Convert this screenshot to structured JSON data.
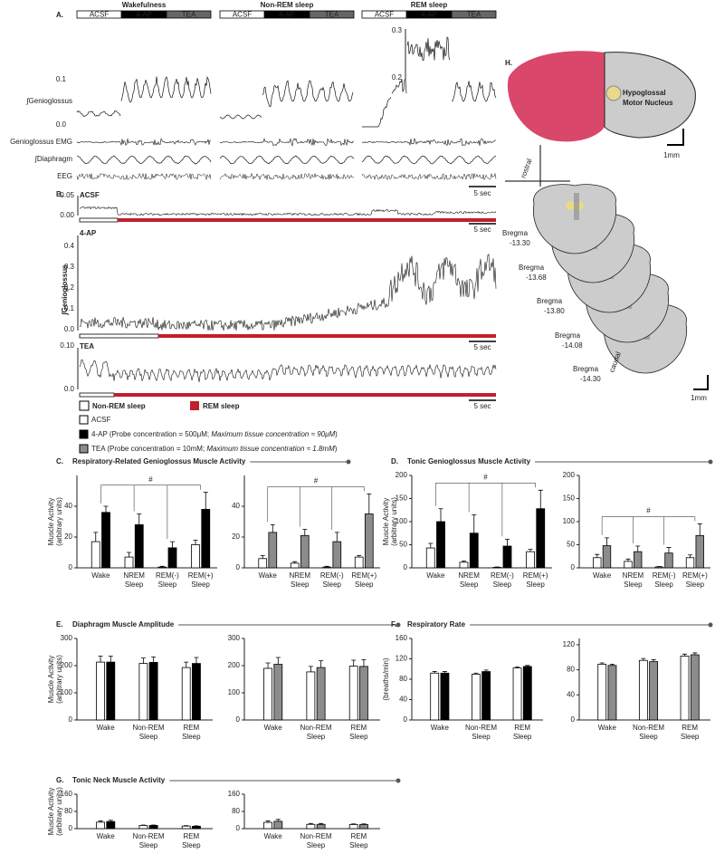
{
  "panel_a": {
    "label": "A.",
    "states": [
      {
        "name": "Wakefulness",
        "phases": [
          "ACSF",
          "4-AP",
          "TEA"
        ]
      },
      {
        "name": "Non-REM sleep",
        "phases": [
          "ACSF",
          "4-AP",
          "TEA"
        ]
      },
      {
        "name": "REM sleep",
        "phases": [
          "ACSF",
          "4-AP",
          "TEA"
        ]
      }
    ],
    "yticks": [
      "0.1",
      "0.0"
    ],
    "inset_yticks": [
      "0.3",
      "0.2"
    ],
    "traces": [
      "∫Genioglossus",
      "Genioglossus EMG",
      "∫Diaphragm",
      "EEG"
    ],
    "scale": "5 sec"
  },
  "panel_b": {
    "label": "B.",
    "ylabel": "∫Genioglossus",
    "rows": [
      {
        "name": "ACSF",
        "yticks": [
          "0.05",
          "0.00"
        ],
        "scale": "5 sec"
      },
      {
        "name": "4-AP",
        "yticks": [
          "0.4",
          "0.3",
          "0.2",
          "0.1",
          "0.0"
        ],
        "scale": "5 sec"
      },
      {
        "name": "TEA",
        "yticks": [
          "0.10",
          "0.0"
        ],
        "scale": "5 sec"
      }
    ],
    "legend": [
      "Non-REM sleep",
      "REM sleep"
    ]
  },
  "legend": {
    "items": [
      {
        "color": "#ffffff",
        "parts": [
          {
            "text": "ACSF",
            "italic": false
          }
        ]
      },
      {
        "color": "#000000",
        "parts": [
          {
            "text": "4-AP (Probe concentration = 500μM; ",
            "italic": false
          },
          {
            "text": "Maximum tissue concentration ≈ 90μM",
            "italic": true
          },
          {
            "text": ")",
            "italic": false
          }
        ]
      },
      {
        "color": "#8c8c8c",
        "parts": [
          {
            "text": "TEA (Probe concentration = 10mM; ",
            "italic": false
          },
          {
            "text": "Maximum tissue concentration ≈ 1.8mM",
            "italic": true
          },
          {
            "text": ")",
            "italic": false
          }
        ]
      }
    ]
  },
  "panel_h": {
    "label": "H.",
    "nucleus": [
      "Hypoglossal",
      "Motor Nucleus"
    ],
    "scale_top": "1mm",
    "rostral": "rostral",
    "caudal": "caudal",
    "bregma": [
      [
        "Bregma",
        "-13.30"
      ],
      [
        "Bregma",
        "-13.68"
      ],
      [
        "Bregma",
        "-13.80"
      ],
      [
        "Bregma",
        "-14.08"
      ],
      [
        "Bregma",
        "-14.30"
      ]
    ],
    "scale_bottom": "1mm"
  },
  "chart_data": [
    {
      "type": "bar",
      "panel_label": "C.",
      "title": "Respiratory-Related Genioglossus Muscle Activity",
      "ylabel": [
        "Muscle Activity",
        "(arbitrary units)"
      ],
      "annotation": "#",
      "categories": [
        [
          "Wake"
        ],
        [
          "NREM",
          "Sleep"
        ],
        [
          "REM(-)",
          "Sleep"
        ],
        [
          "REM(+)",
          "Sleep"
        ]
      ],
      "series": [
        {
          "color": "#ffffff",
          "values": [
            17,
            7,
            0.5,
            15
          ],
          "errors": [
            6,
            3,
            0.5,
            3
          ]
        },
        {
          "color": "#000000",
          "values": [
            36,
            28,
            13,
            38
          ],
          "errors": [
            4,
            7,
            4,
            11
          ]
        }
      ],
      "ylim": [
        0,
        60
      ],
      "yticks": [
        0,
        20,
        40
      ]
    },
    {
      "type": "bar",
      "annotation": "#",
      "categories": [
        [
          "Wake"
        ],
        [
          "NREM",
          "Sleep"
        ],
        [
          "REM(-)",
          "Sleep"
        ],
        [
          "REM(+)",
          "Sleep"
        ]
      ],
      "series": [
        {
          "color": "#ffffff",
          "values": [
            6,
            3,
            0.5,
            7
          ],
          "errors": [
            2,
            1,
            0.5,
            1
          ]
        },
        {
          "color": "#8c8c8c",
          "values": [
            23,
            21,
            17,
            35
          ],
          "errors": [
            5,
            4,
            6,
            13
          ]
        }
      ],
      "ylim": [
        0,
        60
      ],
      "yticks": [
        0,
        20,
        40
      ]
    },
    {
      "type": "bar",
      "panel_label": "D.",
      "title": "Tonic Genioglossus Muscle Activity",
      "ylabel": [
        "Muscle Activity",
        "(arbitrary units)"
      ],
      "annotation": "#",
      "categories": [
        [
          "Wake"
        ],
        [
          "NREM",
          "Sleep"
        ],
        [
          "REM(-)",
          "Sleep"
        ],
        [
          "REM(+)",
          "Sleep"
        ]
      ],
      "series": [
        {
          "color": "#ffffff",
          "values": [
            43,
            12,
            1,
            35
          ],
          "errors": [
            10,
            3,
            1,
            5
          ]
        },
        {
          "color": "#000000",
          "values": [
            100,
            75,
            47,
            128
          ],
          "errors": [
            28,
            40,
            15,
            40
          ]
        }
      ],
      "ylim": [
        0,
        200
      ],
      "yticks": [
        0,
        50,
        100,
        150,
        200
      ]
    },
    {
      "type": "bar",
      "annotation": "#",
      "categories": [
        [
          "Wake"
        ],
        [
          "NREM",
          "Sleep"
        ],
        [
          "REM(-)",
          "Sleep"
        ],
        [
          "REM(+)",
          "Sleep"
        ]
      ],
      "series": [
        {
          "color": "#ffffff",
          "values": [
            22,
            14,
            2,
            22
          ],
          "errors": [
            7,
            5,
            1,
            6
          ]
        },
        {
          "color": "#8c8c8c",
          "values": [
            48,
            35,
            32,
            70
          ],
          "errors": [
            17,
            12,
            12,
            25
          ]
        }
      ],
      "ylim": [
        0,
        200
      ],
      "yticks": [
        0,
        50,
        100,
        150,
        200
      ]
    },
    {
      "type": "bar",
      "panel_label": "E.",
      "title": "Diaphragm Muscle Amplitude",
      "ylabel": [
        "Muscle Activity",
        "(arbitrary units)"
      ],
      "categories": [
        [
          "Wake"
        ],
        [
          "Non-REM",
          "Sleep"
        ],
        [
          "REM",
          "Sleep"
        ]
      ],
      "series": [
        {
          "color": "#ffffff",
          "values": [
            213,
            208,
            193
          ],
          "errors": [
            22,
            20,
            20
          ]
        },
        {
          "color": "#000000",
          "values": [
            213,
            212,
            208
          ],
          "errors": [
            22,
            20,
            22
          ]
        }
      ],
      "ylim": [
        0,
        300
      ],
      "yticks": [
        0,
        100,
        200,
        300
      ]
    },
    {
      "type": "bar",
      "categories": [
        [
          "Wake"
        ],
        [
          "Non-REM",
          "Sleep"
        ],
        [
          "REM",
          "Sleep"
        ]
      ],
      "series": [
        {
          "color": "#ffffff",
          "values": [
            190,
            177,
            198
          ],
          "errors": [
            20,
            20,
            22
          ]
        },
        {
          "color": "#8c8c8c",
          "values": [
            205,
            193,
            197
          ],
          "errors": [
            25,
            25,
            25
          ]
        }
      ],
      "ylim": [
        0,
        300
      ],
      "yticks": [
        0,
        100,
        200,
        300
      ]
    },
    {
      "type": "bar",
      "panel_label": "F.",
      "title": "Respiratory Rate",
      "ylabel": [
        "(breaths/min)"
      ],
      "categories": [
        [
          "Wake"
        ],
        [
          "Non-REM",
          "Sleep"
        ],
        [
          "REM",
          "Sleep"
        ]
      ],
      "series": [
        {
          "color": "#ffffff",
          "values": [
            92,
            90,
            102
          ],
          "errors": [
            3,
            2,
            2
          ]
        },
        {
          "color": "#000000",
          "values": [
            92,
            95,
            105
          ],
          "errors": [
            3,
            3,
            2
          ]
        }
      ],
      "ylim": [
        0,
        160
      ],
      "yticks": [
        0,
        40,
        80,
        120,
        160
      ]
    },
    {
      "type": "bar",
      "categories": [
        [
          "Wake"
        ],
        [
          "Non-REM",
          "Sleep"
        ],
        [
          "REM",
          "Sleep"
        ]
      ],
      "series": [
        {
          "color": "#ffffff",
          "values": [
            89,
            95,
            102
          ],
          "errors": [
            2,
            3,
            3
          ]
        },
        {
          "color": "#8c8c8c",
          "values": [
            87,
            93,
            104
          ],
          "errors": [
            2,
            3,
            3
          ]
        }
      ],
      "ylim": [
        0,
        130
      ],
      "yticks": [
        0,
        40,
        80,
        120
      ]
    },
    {
      "type": "bar",
      "panel_label": "G.",
      "title": "Tonic Neck Muscle Activity",
      "ylabel": [
        "Muscle Activity",
        "(arbitrary units)"
      ],
      "categories": [
        [
          "Wake"
        ],
        [
          "Non-REM",
          "Sleep"
        ],
        [
          "REM",
          "Sleep"
        ]
      ],
      "series": [
        {
          "color": "#ffffff",
          "values": [
            30,
            15,
            12
          ],
          "errors": [
            6,
            2,
            2
          ]
        },
        {
          "color": "#000000",
          "values": [
            33,
            15,
            11
          ],
          "errors": [
            6,
            2,
            2
          ]
        }
      ],
      "ylim": [
        0,
        160
      ],
      "yticks": [
        0,
        80,
        160
      ]
    },
    {
      "type": "bar",
      "categories": [
        [
          "Wake"
        ],
        [
          "Non-REM",
          "Sleep"
        ],
        [
          "REM",
          "Sleep"
        ]
      ],
      "series": [
        {
          "color": "#ffffff",
          "values": [
            29,
            20,
            19
          ],
          "errors": [
            7,
            4,
            3
          ]
        },
        {
          "color": "#8c8c8c",
          "values": [
            34,
            20,
            19
          ],
          "errors": [
            9,
            4,
            3
          ]
        }
      ],
      "ylim": [
        0,
        160
      ],
      "yticks": [
        0,
        80,
        160
      ]
    }
  ]
}
